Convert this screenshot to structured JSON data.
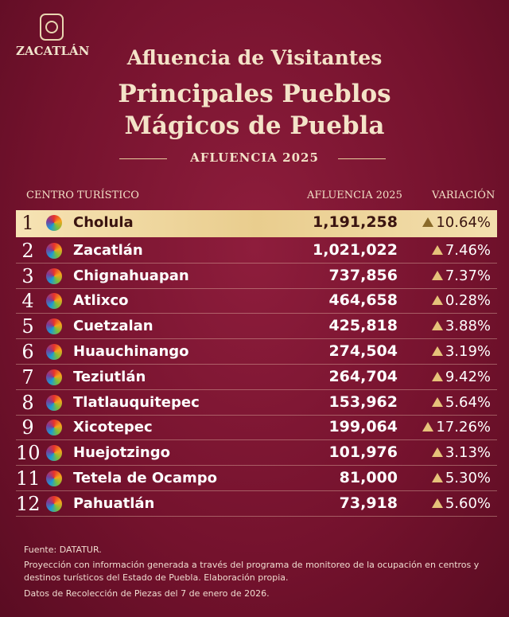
{
  "logo": {
    "name": "ZACATLÁN"
  },
  "header": {
    "title": "Afluencia de Visitantes",
    "subtitle_1": "Principales Pueblos",
    "subtitle_2": "Mágicos de Puebla",
    "tag": "AFLUENCIA 2025"
  },
  "table": {
    "columns": [
      "CENTRO TURÍSTICO",
      "AFLUENCIA 2025",
      "VARIACIÓN"
    ],
    "rows": [
      [
        "1",
        "Cholula",
        "1,191,258",
        "10.64%"
      ],
      [
        "2",
        "Zacatlán",
        "1,021,022",
        "7.46%"
      ],
      [
        "3",
        "Chignahuapan",
        "737,856",
        "7.37%"
      ],
      [
        "4",
        "Atlixco",
        "464,658",
        "0.28%"
      ],
      [
        "5",
        "Cuetzalan",
        "425,818",
        "3.88%"
      ],
      [
        "6",
        "Huauchinango",
        "274,504",
        "3.19%"
      ],
      [
        "7",
        "Teziutlán",
        "264,704",
        "9.42%"
      ],
      [
        "8",
        "Tlatlauquitepec",
        "153,962",
        "5.64%"
      ],
      [
        "9",
        "Xicotepec",
        "199,064",
        "17.26%"
      ],
      [
        "10",
        "Huejotzingo",
        "101,976",
        "3.13%"
      ],
      [
        "11",
        "Tetela de Ocampo",
        "81,000",
        "5.30%"
      ],
      [
        "12",
        "Pahuatlán",
        "73,918",
        "5.60%"
      ]
    ]
  },
  "footer": {
    "source": "Fuente: DATATUR.",
    "note": "Proyección con información generada a través del programa de monitoreo de la ocupación en centros y destinos turísticos del Estado de Puebla. Elaboración propia.",
    "date": "Datos de Recolección de Piezas del 7 de enero de 2026."
  }
}
